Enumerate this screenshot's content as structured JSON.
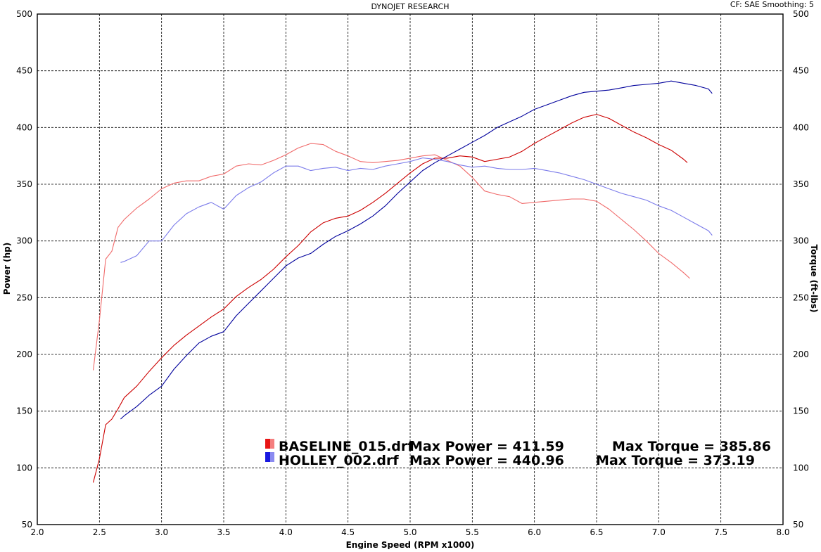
{
  "header": {
    "title": "DYNOJET RESEARCH",
    "settings": "CF: SAE  Smoothing: 5"
  },
  "colors": {
    "baseline": "#cc0000",
    "baseline_torque": "#f06a6a",
    "holley": "#00009c",
    "holley_torque": "#7b7bea",
    "grid": "#000000",
    "background": "#ffffff"
  },
  "chart_data": {
    "type": "line",
    "title": "DYNOJET RESEARCH",
    "xlabel": "Engine Speed (RPM x1000)",
    "ylabel": "Power (hp)",
    "y2label": "Torque (ft-lbs)",
    "xlim": [
      2.0,
      8.0
    ],
    "ylim": [
      50,
      500
    ],
    "y2lim": [
      50,
      500
    ],
    "xticks": [
      "2.0",
      "2.5",
      "3.0",
      "3.5",
      "4.0",
      "4.5",
      "5.0",
      "5.5",
      "6.0",
      "6.5",
      "7.0",
      "7.5",
      "8.0"
    ],
    "yticks": [
      "50",
      "100",
      "150",
      "200",
      "250",
      "300",
      "350",
      "400",
      "450",
      "500"
    ],
    "grid": true,
    "legend": {
      "placement": "bottom-right",
      "entries": [
        {
          "file": "BASELINE_015.drf",
          "power_text": "Max Power = 411.59",
          "torque_text": "Max Torque = 385.86"
        },
        {
          "file": "HOLLEY_002.drf",
          "power_text": "Max Power = 440.96",
          "torque_text": "Max Torque = 373.19"
        }
      ]
    },
    "series": [
      {
        "name": "BASELINE_015.drf",
        "measure": "power",
        "axis": "left",
        "x": [
          2.45,
          2.5,
          2.55,
          2.6,
          2.65,
          2.7,
          2.8,
          2.9,
          3.0,
          3.1,
          3.2,
          3.3,
          3.4,
          3.5,
          3.6,
          3.7,
          3.8,
          3.9,
          4.0,
          4.1,
          4.2,
          4.3,
          4.4,
          4.5,
          4.6,
          4.7,
          4.8,
          4.9,
          5.0,
          5.1,
          5.2,
          5.3,
          5.4,
          5.5,
          5.6,
          5.7,
          5.8,
          5.9,
          6.0,
          6.1,
          6.2,
          6.3,
          6.4,
          6.5,
          6.6,
          6.7,
          6.8,
          6.9,
          7.0,
          7.1,
          7.2,
          7.23
        ],
        "y": [
          87,
          108,
          138,
          143,
          152,
          162,
          172,
          185,
          197,
          208,
          217,
          225,
          233,
          240,
          251,
          259,
          266,
          275,
          286,
          296,
          308,
          316,
          320,
          322,
          327,
          334,
          342,
          351,
          360,
          368,
          373,
          373,
          375,
          374,
          370,
          372,
          374,
          379,
          386,
          392,
          398,
          404,
          409,
          411.6,
          408,
          402,
          396,
          391,
          385,
          380,
          372,
          369
        ]
      },
      {
        "name": "BASELINE_015.drf",
        "measure": "torque",
        "axis": "right",
        "x": [
          2.45,
          2.5,
          2.55,
          2.6,
          2.65,
          2.7,
          2.8,
          2.9,
          3.0,
          3.1,
          3.2,
          3.3,
          3.4,
          3.5,
          3.6,
          3.7,
          3.8,
          3.9,
          4.0,
          4.1,
          4.2,
          4.3,
          4.4,
          4.5,
          4.6,
          4.7,
          4.8,
          4.9,
          5.0,
          5.1,
          5.2,
          5.3,
          5.4,
          5.5,
          5.6,
          5.7,
          5.8,
          5.9,
          6.0,
          6.1,
          6.2,
          6.3,
          6.4,
          6.5,
          6.6,
          6.7,
          6.8,
          6.9,
          7.0,
          7.1,
          7.2,
          7.25
        ],
        "y": [
          186,
          230,
          284,
          291,
          312,
          319,
          329,
          337,
          346,
          351,
          353,
          353,
          357,
          359,
          366,
          368,
          367,
          371,
          376,
          382,
          385.9,
          385,
          379,
          375,
          370,
          369,
          370,
          371,
          373,
          375,
          376,
          371,
          366,
          356,
          344,
          341,
          339,
          333,
          334,
          335,
          336,
          337,
          337,
          335,
          328,
          319,
          310,
          300,
          289,
          281,
          272,
          267
        ]
      },
      {
        "name": "HOLLEY_002.drf",
        "measure": "power",
        "axis": "left",
        "x": [
          2.67,
          2.7,
          2.8,
          2.9,
          3.0,
          3.1,
          3.2,
          3.3,
          3.4,
          3.5,
          3.6,
          3.7,
          3.8,
          3.9,
          4.0,
          4.1,
          4.2,
          4.3,
          4.4,
          4.5,
          4.6,
          4.7,
          4.8,
          4.9,
          5.0,
          5.1,
          5.2,
          5.3,
          5.4,
          5.5,
          5.6,
          5.7,
          5.8,
          5.9,
          6.0,
          6.1,
          6.2,
          6.3,
          6.4,
          6.5,
          6.6,
          6.7,
          6.8,
          6.9,
          7.0,
          7.1,
          7.2,
          7.3,
          7.4,
          7.43
        ],
        "y": [
          143,
          146,
          154,
          164,
          172,
          187,
          199,
          210,
          216,
          220,
          234,
          245,
          256,
          267,
          278,
          285,
          289,
          297,
          304,
          309,
          315,
          322,
          331,
          342,
          352,
          362,
          369,
          375,
          381,
          387,
          393,
          400,
          405,
          410,
          416,
          420,
          424,
          428,
          431,
          432,
          433,
          435,
          437,
          438,
          439,
          441,
          439,
          437,
          434,
          430
        ]
      },
      {
        "name": "HOLLEY_002.drf",
        "measure": "torque",
        "axis": "right",
        "x": [
          2.67,
          2.7,
          2.8,
          2.9,
          3.0,
          3.1,
          3.2,
          3.3,
          3.4,
          3.5,
          3.6,
          3.7,
          3.8,
          3.9,
          4.0,
          4.1,
          4.2,
          4.3,
          4.4,
          4.5,
          4.6,
          4.7,
          4.8,
          4.9,
          5.0,
          5.1,
          5.2,
          5.3,
          5.4,
          5.5,
          5.6,
          5.7,
          5.8,
          5.9,
          6.0,
          6.1,
          6.2,
          6.3,
          6.4,
          6.5,
          6.6,
          6.7,
          6.8,
          6.9,
          7.0,
          7.1,
          7.2,
          7.3,
          7.4,
          7.43
        ],
        "y": [
          281,
          282,
          287,
          300,
          300,
          314,
          324,
          330,
          334,
          328,
          340,
          347,
          352,
          360,
          366,
          366,
          362,
          364,
          365,
          362,
          364,
          363,
          366,
          368,
          370,
          373.2,
          372,
          370,
          367,
          365,
          366,
          364,
          363,
          363,
          364,
          362,
          360,
          357,
          354,
          350,
          346,
          342,
          339,
          336,
          331,
          327,
          321,
          315,
          309,
          305
        ]
      }
    ]
  }
}
